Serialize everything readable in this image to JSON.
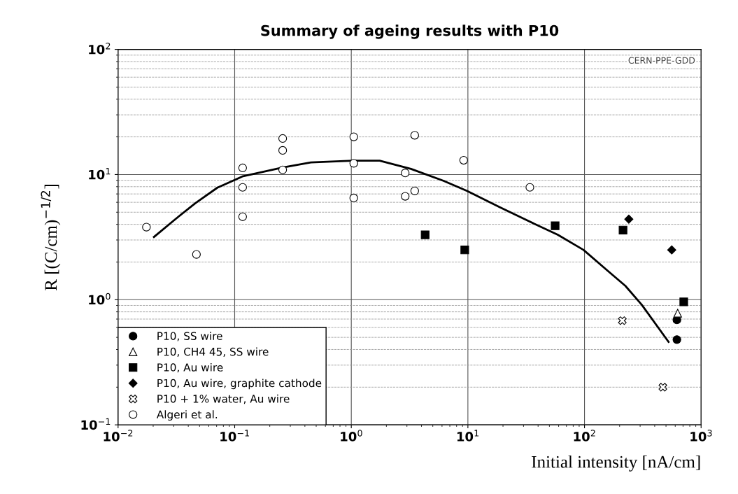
{
  "chart_data": {
    "type": "scatter",
    "title": "Summary of ageing results with P10",
    "xlabel": "Initial intensity [nA/cm]",
    "ylabel": "R [(C/cm)$^{−1/2}$]",
    "log": "xy",
    "xlim": [
      0.01,
      1000
    ],
    "ylim": [
      0.1,
      100
    ],
    "xticks": [
      {
        "value": 0.01,
        "label": "10$^{−2}$"
      },
      {
        "value": 0.1,
        "label": "10$^{−1}$"
      },
      {
        "value": 1,
        "label": "10$^{0}$"
      },
      {
        "value": 10,
        "label": "10$^{1}$"
      },
      {
        "value": 100,
        "label": "10$^{2}$"
      },
      {
        "value": 1000,
        "label": "10$^{3}$"
      }
    ],
    "yticks": [
      {
        "value": 0.1,
        "label": "10$^{−1}$"
      },
      {
        "value": 1,
        "label": "10$^{0}$"
      },
      {
        "value": 10,
        "label": "10$^{1}$"
      },
      {
        "value": 100,
        "label": "10$^{2}$"
      }
    ],
    "grid": true,
    "legend": "bottom left",
    "annotations": [
      "CERN-PPE-GDD"
    ],
    "series": [
      {
        "name": "P10, SS wire",
        "color": "#000000",
        "marker": "circle",
        "x": [
          620,
          620
        ],
        "values": [
          0.69,
          0.48
        ]
      },
      {
        "name": "P10, CH4 45, SS wire",
        "color": "#ffffff",
        "marker": "triangle",
        "x": [
          630
        ],
        "values": [
          0.78
        ]
      },
      {
        "name": "P10, Au wire",
        "color": "#000000",
        "marker": "square",
        "x": [
          4.3,
          9.4,
          56,
          214,
          710
        ],
        "values": [
          3.3,
          2.5,
          3.9,
          3.6,
          0.96
        ]
      },
      {
        "name": "P10, Au wire, graphite cathode",
        "color": "#000000",
        "marker": "diamond",
        "x": [
          240,
          560
        ],
        "values": [
          4.4,
          2.5
        ]
      },
      {
        "name": "P10 + 1% water, Au wire",
        "color": "#ffffff",
        "marker": "cross",
        "x": [
          211,
          470
        ],
        "values": [
          0.68,
          0.2
        ]
      },
      {
        "name": "Algeri et al.",
        "color": "#ffffff",
        "marker": "circle",
        "x": [
          0.0175,
          0.047,
          0.117,
          0.117,
          0.117,
          0.258,
          0.258,
          0.258,
          1.05,
          1.05,
          1.05,
          3.5,
          2.9,
          2.9,
          3.5,
          9.2,
          34
        ],
        "values": [
          3.8,
          2.3,
          11.3,
          7.9,
          4.6,
          19.4,
          15.6,
          10.9,
          20,
          12.3,
          6.5,
          20.6,
          10.3,
          6.7,
          7.4,
          13.0,
          7.9
        ]
      },
      {
        "type": "line",
        "color": "#000000",
        "marker": "none",
        "line_style": "solid",
        "x": [
          0.0203,
          0.031,
          0.046,
          0.071,
          0.118,
          0.258,
          0.45,
          1.03,
          1.75,
          3.25,
          6.2,
          9.8,
          18.7,
          34,
          59,
          98,
          155,
          224,
          310,
          526
        ],
        "values": [
          3.17,
          4.4,
          5.9,
          7.85,
          9.7,
          11.4,
          12.5,
          12.9,
          12.9,
          11.1,
          8.9,
          7.4,
          5.5,
          4.2,
          3.3,
          2.5,
          1.73,
          1.29,
          0.91,
          0.46
        ]
      }
    ]
  }
}
